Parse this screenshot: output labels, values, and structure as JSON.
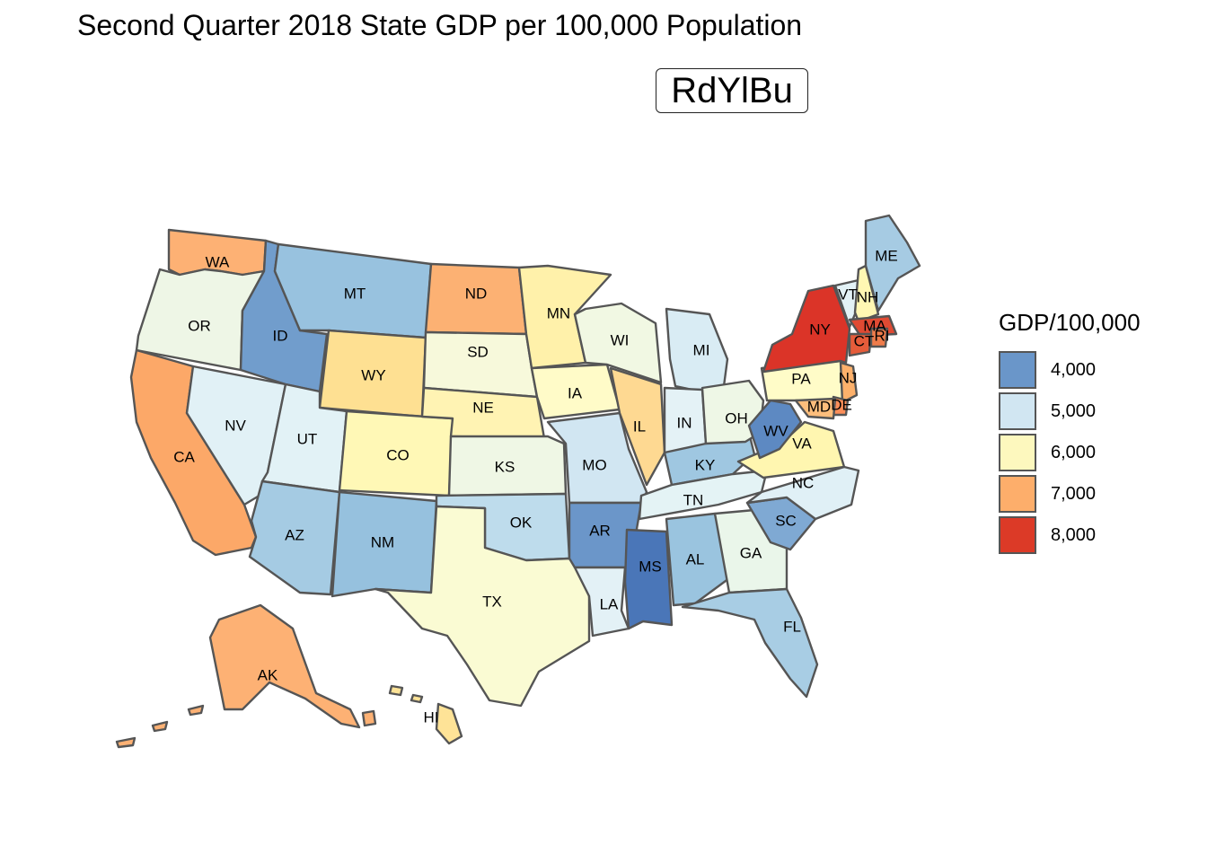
{
  "title": "Second Quarter 2018 State GDP per 100,000 Population",
  "palette_label": "RdYlBu",
  "legend": {
    "title": "GDP/100,000",
    "items": [
      {
        "label": "4,000",
        "color": "#6a96c9"
      },
      {
        "label": "5,000",
        "color": "#d1e6f2"
      },
      {
        "label": "6,000",
        "color": "#fdf8be"
      },
      {
        "label": "7,000",
        "color": "#fdae6b"
      },
      {
        "label": "8,000",
        "color": "#dc3a27"
      }
    ]
  },
  "states": [
    {
      "abbr": "WA",
      "color": "#fdb174"
    },
    {
      "abbr": "OR",
      "color": "#eef6e6"
    },
    {
      "abbr": "CA",
      "color": "#fca868"
    },
    {
      "abbr": "NV",
      "color": "#e1f1f6"
    },
    {
      "abbr": "ID",
      "color": "#719dcc"
    },
    {
      "abbr": "MT",
      "color": "#98c2df"
    },
    {
      "abbr": "WY",
      "color": "#fee092"
    },
    {
      "abbr": "UT",
      "color": "#e2f2f6"
    },
    {
      "abbr": "CO",
      "color": "#fff8b6"
    },
    {
      "abbr": "AZ",
      "color": "#a5cbe3"
    },
    {
      "abbr": "NM",
      "color": "#96c1de"
    },
    {
      "abbr": "ND",
      "color": "#fcb173"
    },
    {
      "abbr": "SD",
      "color": "#f7f9db"
    },
    {
      "abbr": "NE",
      "color": "#fff3b3"
    },
    {
      "abbr": "KS",
      "color": "#eff7e5"
    },
    {
      "abbr": "OK",
      "color": "#bedcec"
    },
    {
      "abbr": "TX",
      "color": "#fafbd3"
    },
    {
      "abbr": "MN",
      "color": "#fff1aa"
    },
    {
      "abbr": "IA",
      "color": "#fffbc8"
    },
    {
      "abbr": "MO",
      "color": "#d1e6f2"
    },
    {
      "abbr": "AR",
      "color": "#6b96c9"
    },
    {
      "abbr": "LA",
      "color": "#e3f1f6"
    },
    {
      "abbr": "WI",
      "color": "#f1f8e3"
    },
    {
      "abbr": "IL",
      "color": "#fed992"
    },
    {
      "abbr": "MS",
      "color": "#4a76b8"
    },
    {
      "abbr": "MI",
      "color": "#d9ecf4"
    },
    {
      "abbr": "IN",
      "color": "#e4f2f6"
    },
    {
      "abbr": "KY",
      "color": "#9fc7e1"
    },
    {
      "abbr": "TN",
      "color": "#e4f3f5"
    },
    {
      "abbr": "AL",
      "color": "#9ac4df"
    },
    {
      "abbr": "OH",
      "color": "#eef7e6"
    },
    {
      "abbr": "GA",
      "color": "#eaf6ea"
    },
    {
      "abbr": "FL",
      "color": "#a8cde4"
    },
    {
      "abbr": "SC",
      "color": "#7fa9d3"
    },
    {
      "abbr": "NC",
      "color": "#e0f0f6"
    },
    {
      "abbr": "VA",
      "color": "#fff6b0"
    },
    {
      "abbr": "WV",
      "color": "#5d89c2"
    },
    {
      "abbr": "PA",
      "color": "#fffcc8"
    },
    {
      "abbr": "NY",
      "color": "#db3428"
    },
    {
      "abbr": "VT",
      "color": "#e3f2f6"
    },
    {
      "abbr": "NH",
      "color": "#fff7b3"
    },
    {
      "abbr": "ME",
      "color": "#a6cbe3"
    },
    {
      "abbr": "MA",
      "color": "#e04a33"
    },
    {
      "abbr": "CT",
      "color": "#e55c3a"
    },
    {
      "abbr": "RI",
      "color": "#ef7c4b"
    },
    {
      "abbr": "NJ",
      "color": "#fdb16b"
    },
    {
      "abbr": "DE",
      "color": "#fb8e59"
    },
    {
      "abbr": "MD",
      "color": "#fdbe7c"
    },
    {
      "abbr": "AK",
      "color": "#fdb174"
    },
    {
      "abbr": "HI",
      "color": "#fee397"
    }
  ]
}
